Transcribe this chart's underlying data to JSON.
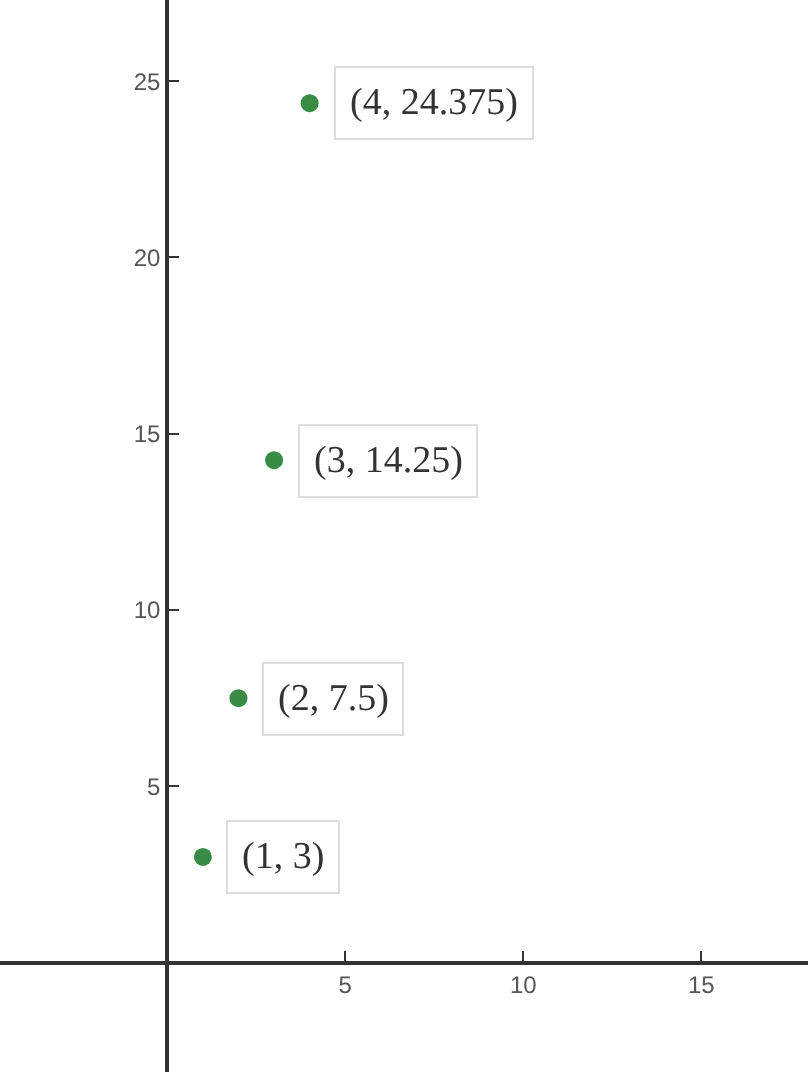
{
  "chart_data": {
    "type": "scatter",
    "x": [
      1,
      2,
      3,
      4
    ],
    "values": [
      3,
      7.5,
      14.25,
      24.375
    ],
    "color": "#388c46",
    "marker": "circle",
    "grid": false,
    "xlim": [
      -4.7,
      18
    ],
    "ylim": [
      -3.1,
      27.3
    ],
    "xticks": [
      5,
      10,
      15
    ],
    "yticks": [
      5,
      10,
      15,
      20,
      25
    ],
    "annotations": [
      {
        "text": "(1, 3)",
        "x": 1,
        "y": 3
      },
      {
        "text": "(2, 7.5)",
        "x": 2,
        "y": 7.5
      },
      {
        "text": "(3, 14.25)",
        "x": 3,
        "y": 14.25
      },
      {
        "text": "(4, 24.375)",
        "x": 4,
        "y": 24.375
      }
    ]
  }
}
